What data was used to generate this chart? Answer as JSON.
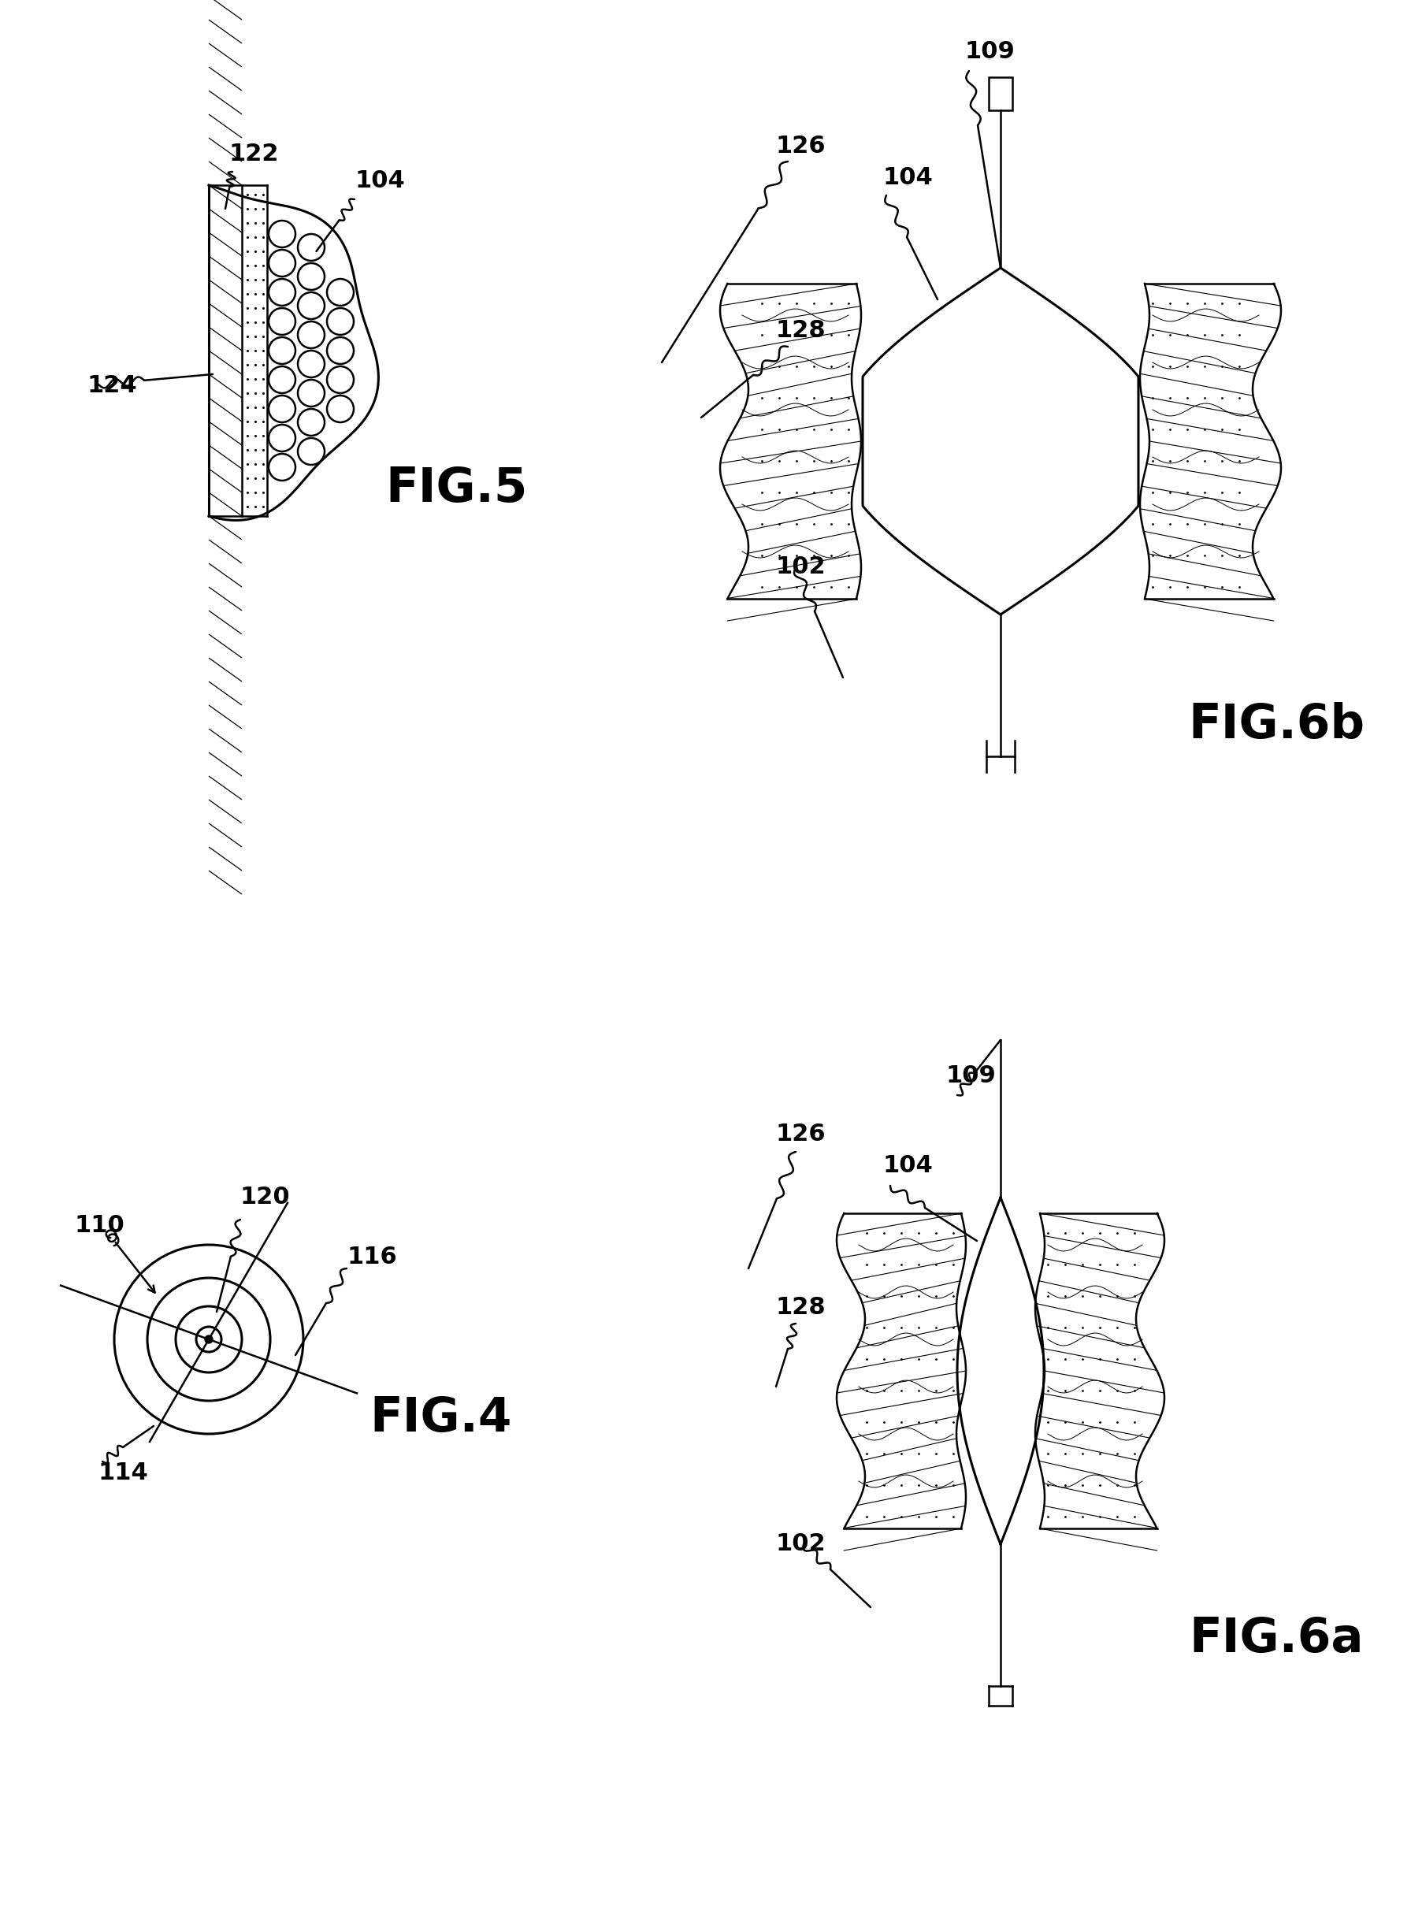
{
  "bg_color": "#ffffff",
  "line_color": "#000000",
  "fig_labels": {
    "fig4": "FIG.4",
    "fig5": "FIG.5",
    "fig6a": "FIG.6a",
    "fig6b": "FIG.6b"
  },
  "label_fontsize": 22,
  "figlabel_fontsize": 44
}
